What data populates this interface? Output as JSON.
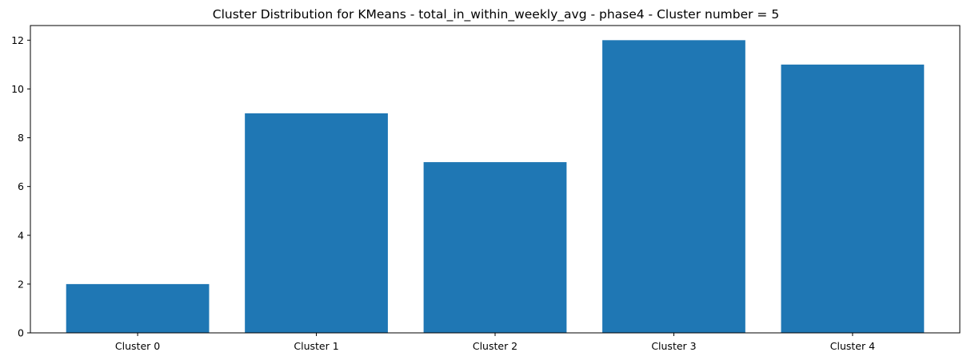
{
  "chart_data": {
    "type": "bar",
    "title": "Cluster Distribution for KMeans - total_in_within_weekly_avg - phase4 - Cluster number = 5",
    "categories": [
      "Cluster 0",
      "Cluster 1",
      "Cluster 2",
      "Cluster 3",
      "Cluster 4"
    ],
    "values": [
      2,
      9,
      7,
      12,
      11
    ],
    "xlabel": "",
    "ylabel": "",
    "ylim": [
      0,
      12.6
    ],
    "yticks": [
      0,
      2,
      4,
      6,
      8,
      10,
      12
    ],
    "grid": false,
    "bar_color": "#1f77b4"
  }
}
